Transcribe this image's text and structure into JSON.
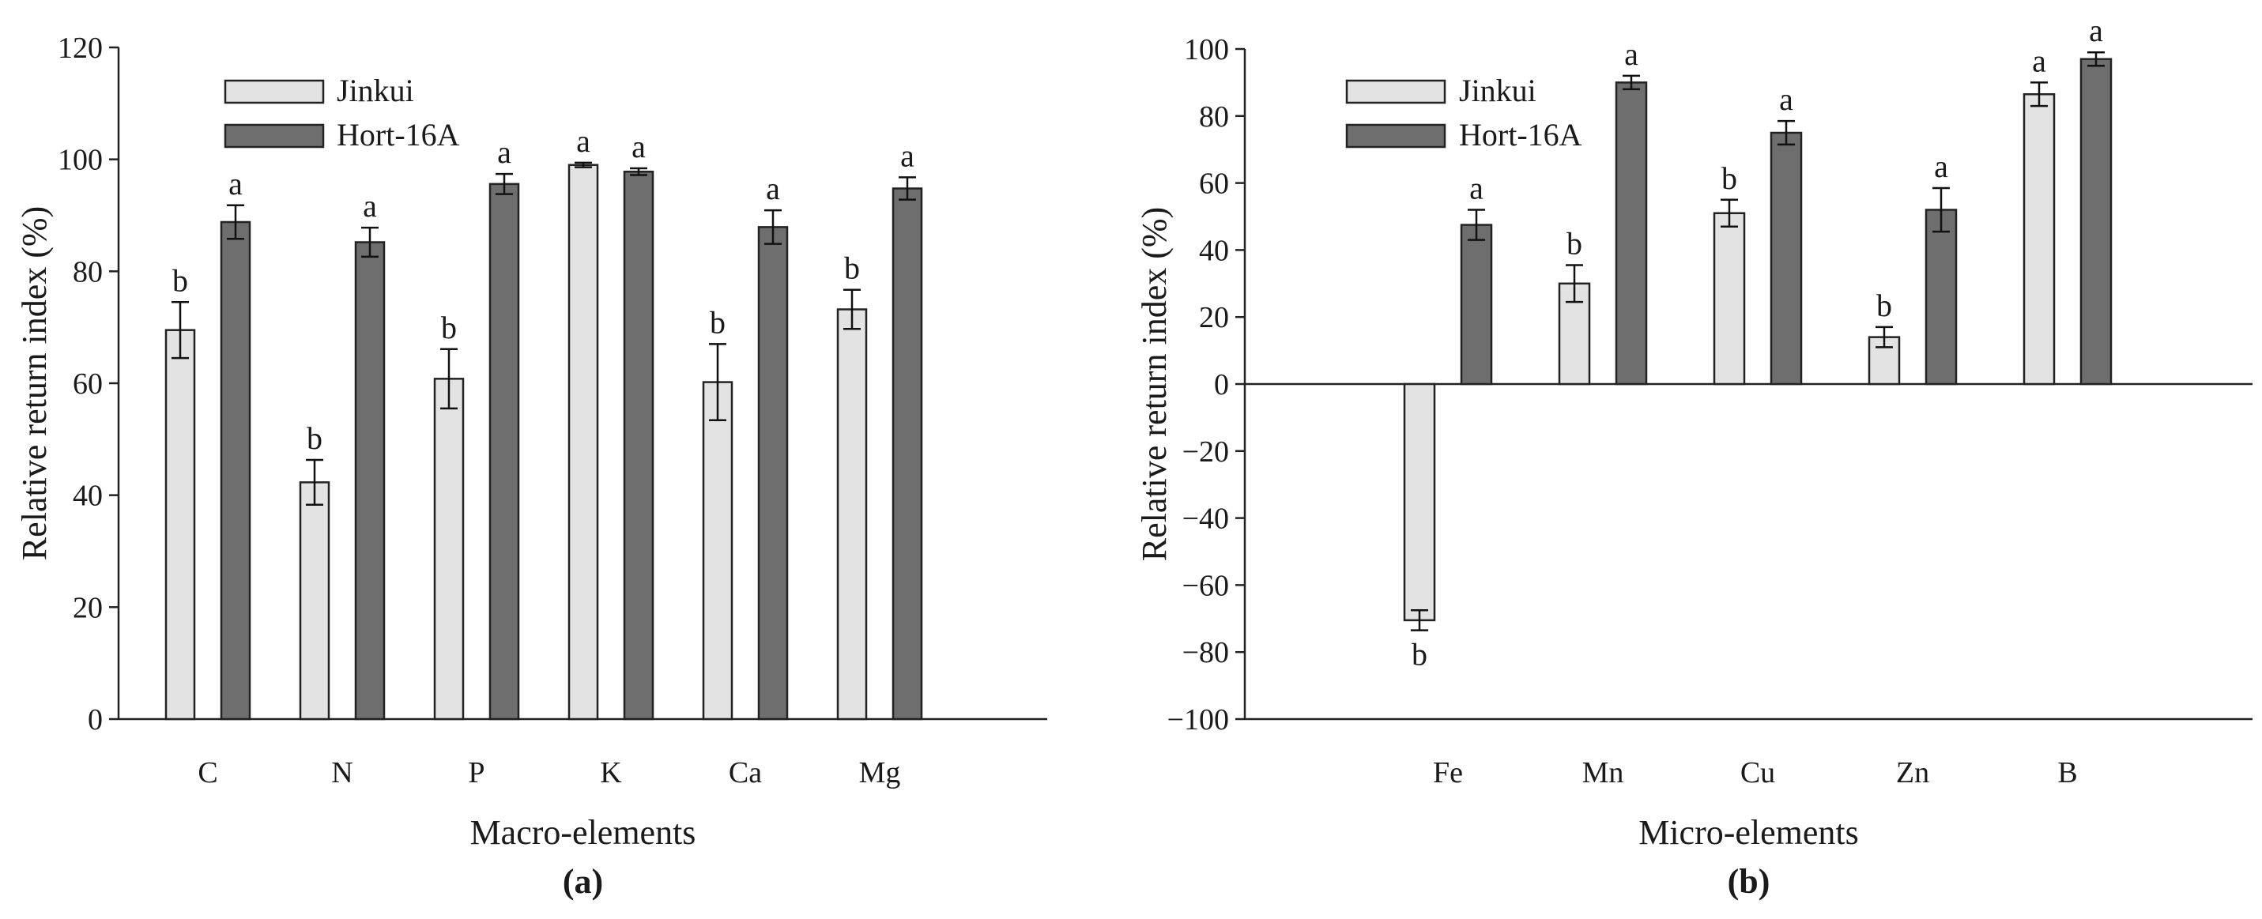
{
  "chart_data": [
    {
      "type": "bar",
      "panel_label": "(a)",
      "xlabel": "Macro-elements",
      "ylabel": "Relative return index (%)",
      "ylim": [
        0,
        120
      ],
      "yticks": [
        0,
        20,
        40,
        60,
        80,
        100,
        120
      ],
      "categories": [
        "C",
        "N",
        "P",
        "K",
        "Ca",
        "Mg"
      ],
      "legend_position": "top-left",
      "grid": false,
      "series": [
        {
          "name": "Jinkui",
          "color": "#e3e3e3",
          "values": [
            69.5,
            42.3,
            60.8,
            99.0,
            60.2,
            73.2
          ],
          "errors": [
            5.0,
            4.0,
            5.3,
            0.4,
            6.8,
            3.5
          ],
          "letters": [
            "b",
            "b",
            "b",
            "a",
            "b",
            "b"
          ]
        },
        {
          "name": "Hort-16A",
          "color": "#6e6e6e",
          "values": [
            88.8,
            85.2,
            95.6,
            97.8,
            87.9,
            94.8
          ],
          "errors": [
            3.0,
            2.6,
            1.8,
            0.6,
            3.0,
            2.0
          ],
          "letters": [
            "a",
            "a",
            "a",
            "a",
            "a",
            "a"
          ]
        }
      ]
    },
    {
      "type": "bar",
      "panel_label": "(b)",
      "xlabel": "Micro-elements",
      "ylabel": "Relative return index (%)",
      "ylim": [
        -100,
        100
      ],
      "yticks": [
        -100,
        -80,
        -60,
        -40,
        -20,
        0,
        20,
        40,
        60,
        80,
        100
      ],
      "categories": [
        "Fe",
        "Mn",
        "Cu",
        "Zn",
        "B"
      ],
      "legend_position": "top-left",
      "grid": false,
      "series": [
        {
          "name": "Jinkui",
          "color": "#e3e3e3",
          "values": [
            -70.5,
            30.0,
            51.0,
            14.0,
            86.5
          ],
          "errors": [
            3.0,
            5.5,
            4.0,
            3.0,
            3.5
          ],
          "letters": [
            "b",
            "b",
            "b",
            "b",
            "a"
          ]
        },
        {
          "name": "Hort-16A",
          "color": "#6e6e6e",
          "values": [
            47.5,
            90.0,
            75.0,
            52.0,
            97.0
          ],
          "errors": [
            4.5,
            2.0,
            3.5,
            6.5,
            2.0
          ],
          "letters": [
            "a",
            "a",
            "a",
            "a",
            "a"
          ]
        }
      ]
    }
  ]
}
